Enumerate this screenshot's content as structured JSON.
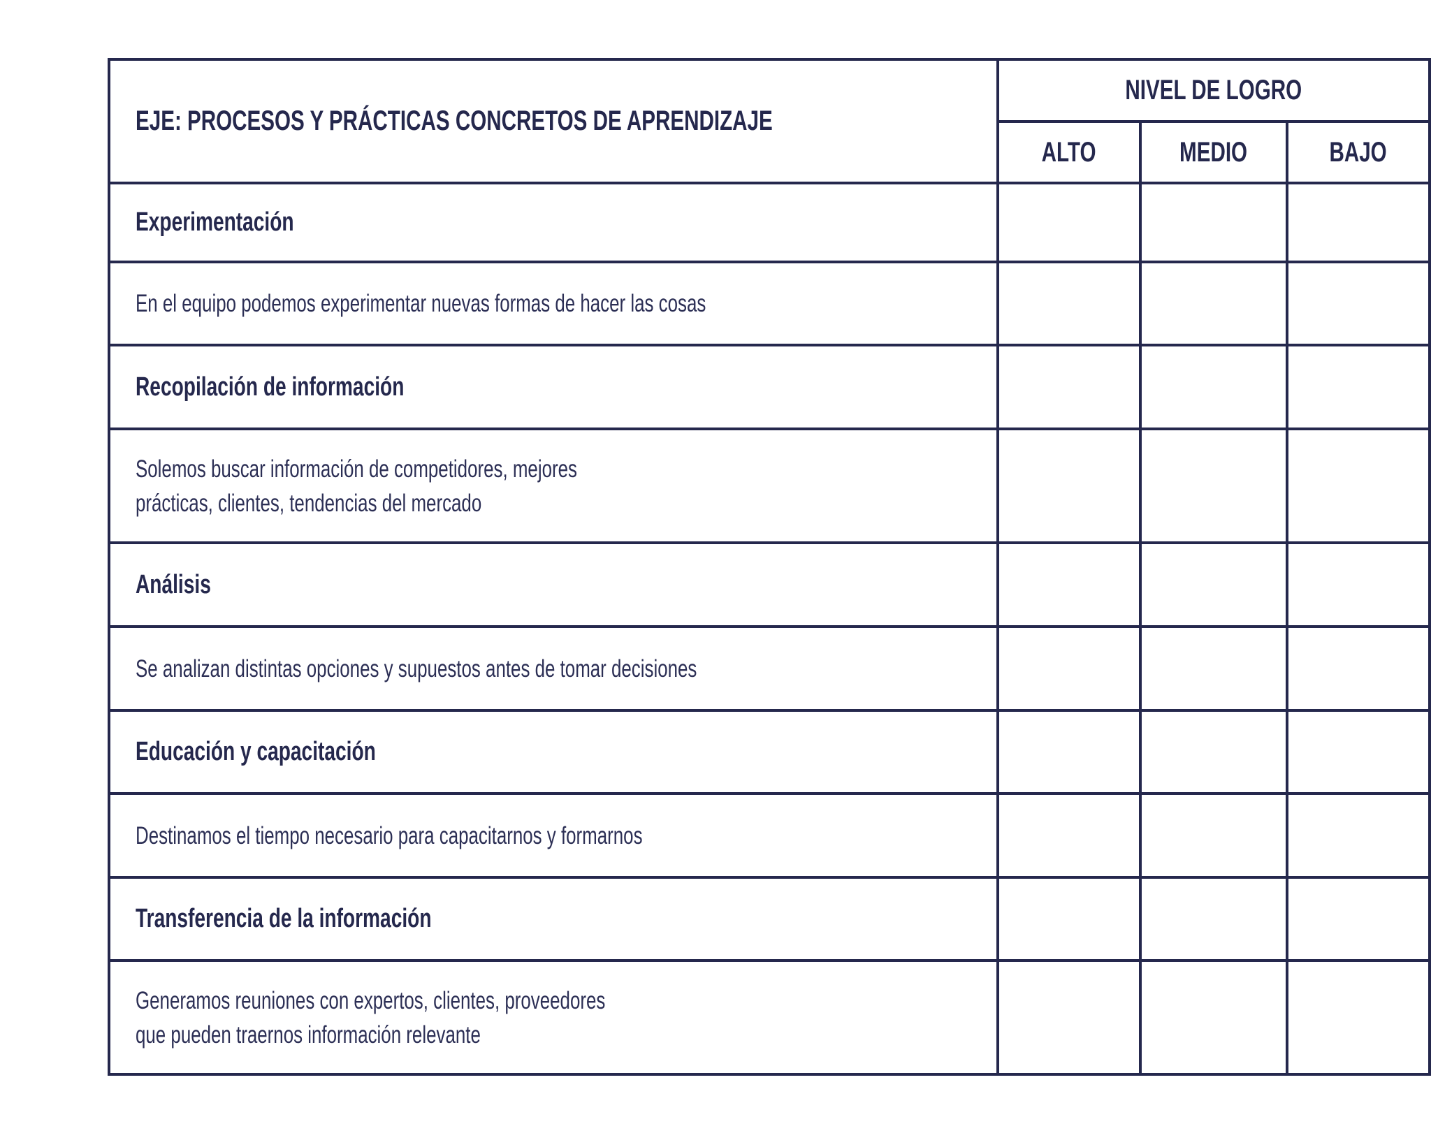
{
  "header": {
    "axis_title": "EJE: PROCESOS Y PRÁCTICAS CONCRETOS DE APRENDIZAJE",
    "level_title": "NIVEL DE LOGRO",
    "levels": [
      "ALTO",
      "MEDIO",
      "BAJO"
    ]
  },
  "rows": [
    {
      "type": "category",
      "lines": [
        "Experimentación"
      ]
    },
    {
      "type": "item",
      "lines": [
        "En el equipo podemos experimentar nuevas formas de hacer las cosas"
      ]
    },
    {
      "type": "category",
      "lines": [
        "Recopilación de información"
      ]
    },
    {
      "type": "item",
      "lines": [
        "Solemos buscar información de competidores, mejores",
        "prácticas, clientes, tendencias del mercado"
      ]
    },
    {
      "type": "category",
      "lines": [
        "Análisis"
      ]
    },
    {
      "type": "item",
      "lines": [
        "Se analizan distintas opciones y supuestos antes de tomar decisiones"
      ]
    },
    {
      "type": "category",
      "lines": [
        "Educación y capacitación"
      ]
    },
    {
      "type": "item",
      "lines": [
        "Destinamos el tiempo necesario para capacitarnos y formarnos"
      ]
    },
    {
      "type": "category",
      "lines": [
        "Transferencia de la información"
      ]
    },
    {
      "type": "item",
      "lines": [
        "Generamos reuniones con expertos, clientes, proveedores",
        "que pueden traernos información relevante"
      ]
    }
  ],
  "colors": {
    "border": "#25284d",
    "text": "#25284d"
  }
}
